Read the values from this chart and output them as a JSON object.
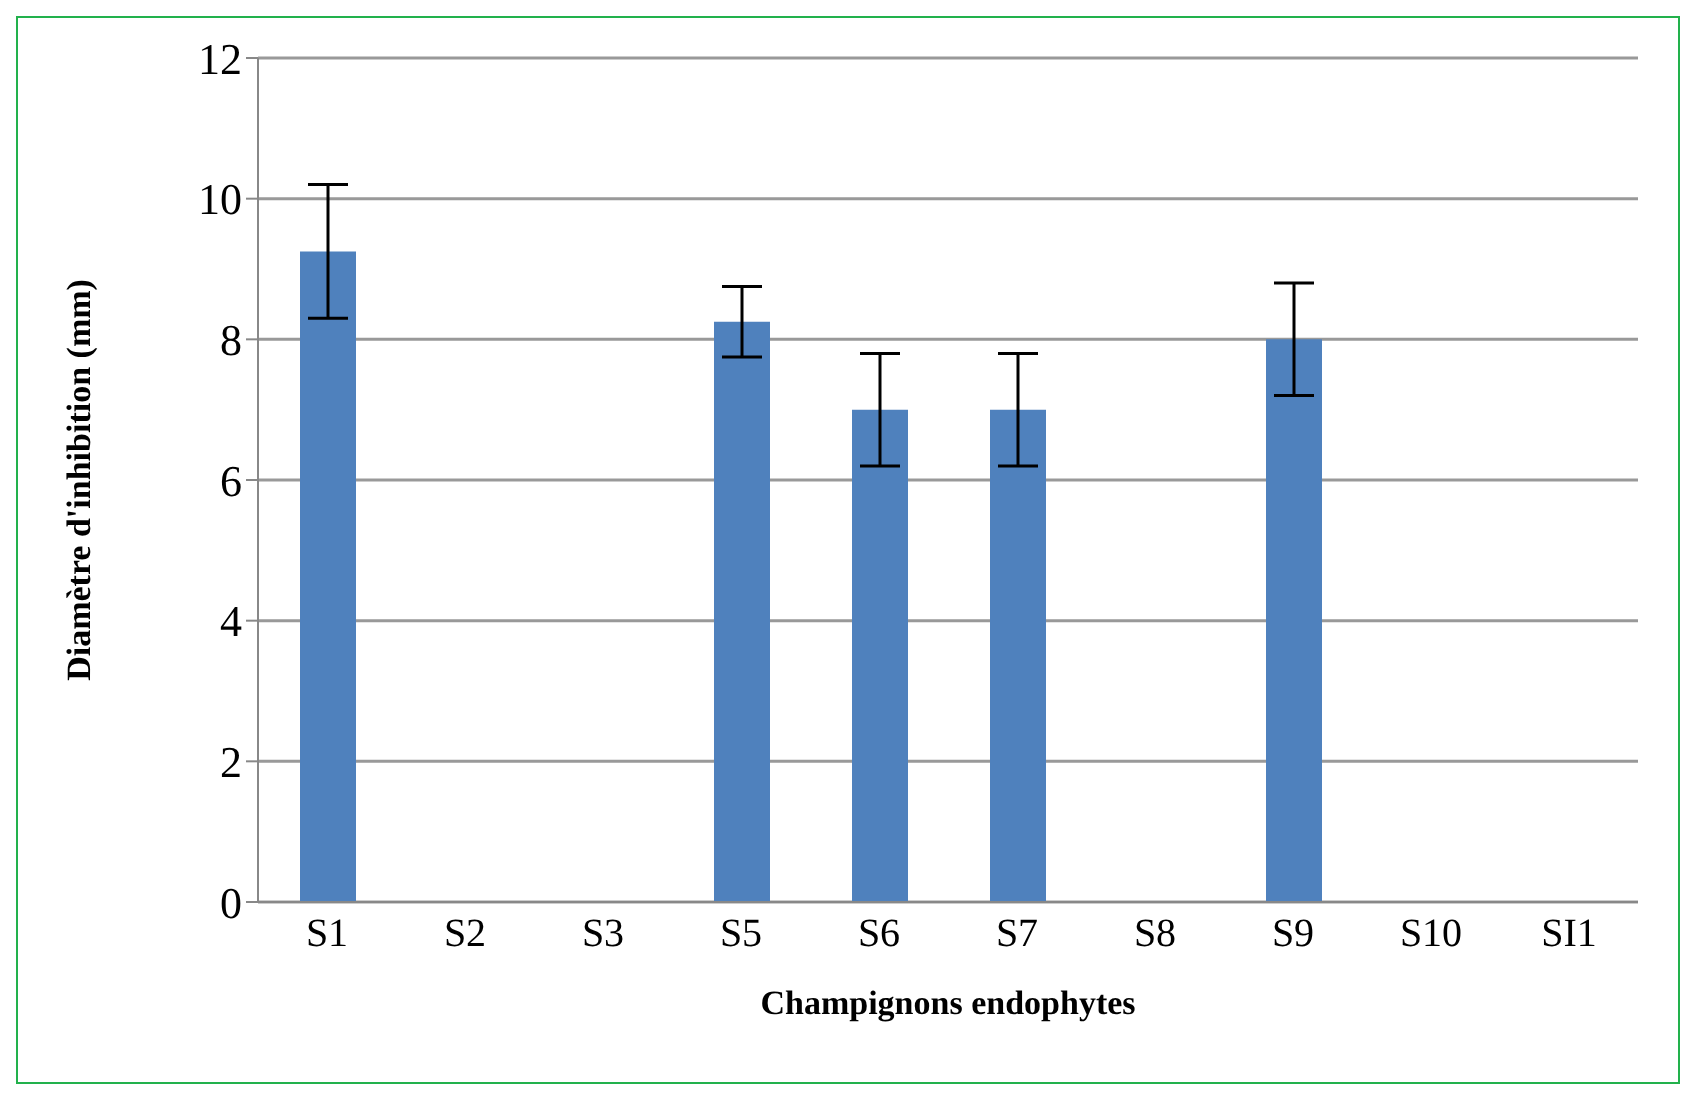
{
  "chart_data": {
    "type": "bar",
    "xlabel": "Champignons endophytes",
    "ylabel": "Diamètre d'inhibition (mm)",
    "categories": [
      "S1",
      "S2",
      "S3",
      "S5",
      "S6",
      "S7",
      "S8",
      "S9",
      "S10",
      "SI1"
    ],
    "values": [
      9.25,
      0,
      0,
      8.25,
      7,
      7,
      0,
      8,
      0,
      0
    ],
    "errors": [
      0.95,
      0,
      0,
      0.5,
      0.8,
      0.8,
      0,
      0.8,
      0,
      0
    ],
    "color": "#4f81bd",
    "ylim": [
      0,
      12
    ],
    "yticks": [
      0,
      2,
      4,
      6,
      8,
      10,
      12
    ],
    "grid": "y"
  }
}
